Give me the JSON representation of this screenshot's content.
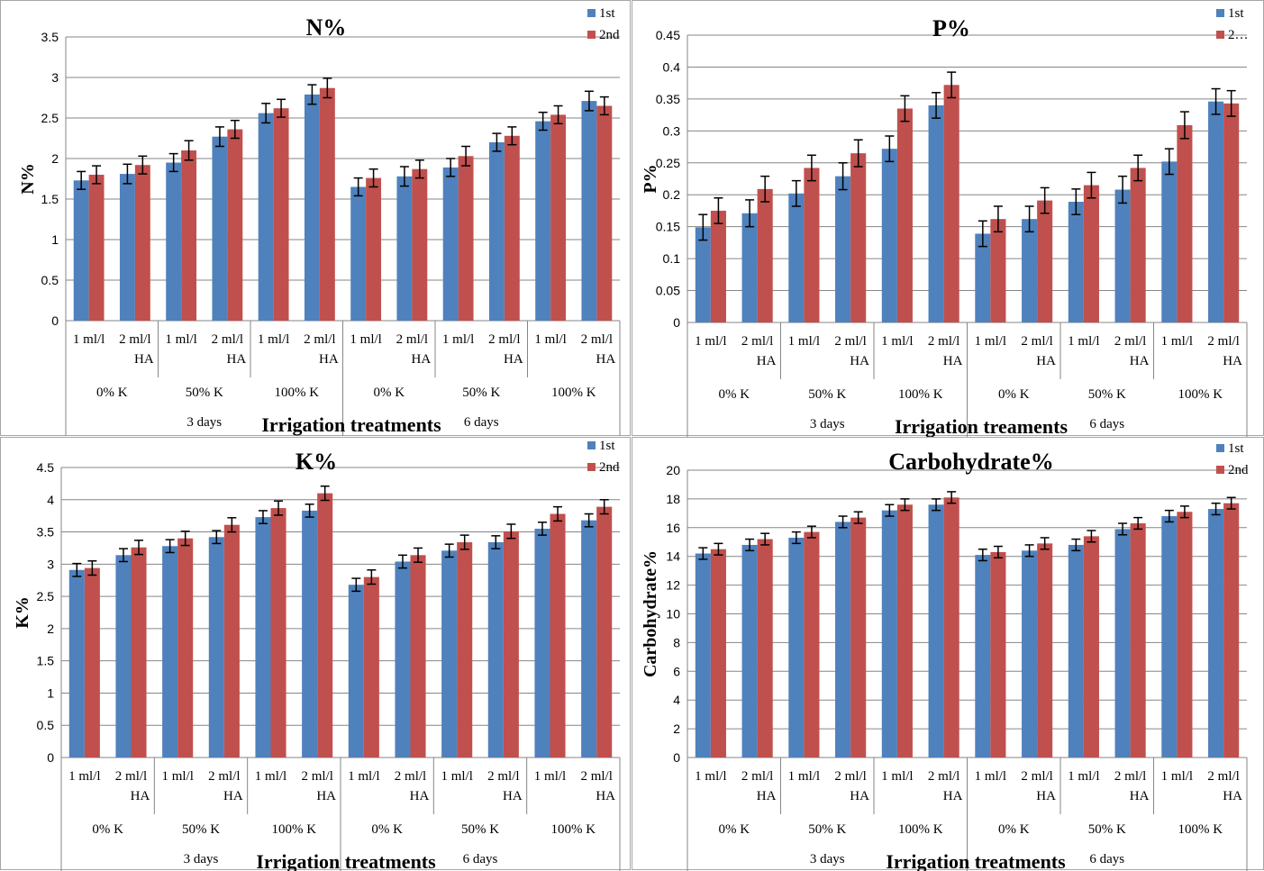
{
  "colors": {
    "series1": "#4f81bd",
    "series2": "#c0504d",
    "grid": "#868686",
    "axis": "#868686",
    "errorbar": "#000000"
  },
  "chart_data": [
    {
      "type": "bar",
      "title": "N%",
      "ylabel": "N%",
      "xlabel": "Irrigation treatments",
      "ylim": [
        0,
        3.5
      ],
      "yticks": [
        "0",
        "0.5",
        "1",
        "1.5",
        "2",
        "2.5",
        "3",
        "3.5"
      ],
      "legend_position": "top-right",
      "categories": [
        "1 ml/l",
        "2 ml/l HA",
        "1 ml/l",
        "2 ml/l HA",
        "1 ml/l",
        "2 ml/l HA",
        "1 ml/l",
        "2 ml/l HA",
        "1 ml/l",
        "2 ml/l HA",
        "1 ml/l",
        "2 ml/l HA"
      ],
      "groups_level2": [
        "0% K",
        "50% K",
        "100% K",
        "0% K",
        "50% K",
        "100% K"
      ],
      "groups_level3": [
        "3 days",
        "6 days"
      ],
      "series": [
        {
          "name": "1st",
          "values": [
            1.73,
            1.81,
            1.95,
            2.27,
            2.56,
            2.79,
            1.65,
            1.78,
            1.89,
            2.2,
            2.46,
            2.71
          ],
          "errors": [
            0.11,
            0.12,
            0.11,
            0.12,
            0.12,
            0.12,
            0.11,
            0.12,
            0.11,
            0.11,
            0.11,
            0.12
          ]
        },
        {
          "name": "2nd",
          "values": [
            1.8,
            1.92,
            2.1,
            2.36,
            2.62,
            2.87,
            1.76,
            1.87,
            2.03,
            2.28,
            2.54,
            2.65
          ],
          "errors": [
            0.11,
            0.11,
            0.12,
            0.11,
            0.11,
            0.12,
            0.11,
            0.11,
            0.12,
            0.11,
            0.11,
            0.11
          ]
        }
      ]
    },
    {
      "type": "bar",
      "title": "P%",
      "ylabel": "P%",
      "xlabel": "Irrigation treaments",
      "ylim": [
        0,
        0.45
      ],
      "yticks": [
        "0",
        "0.05",
        "0.1",
        "0.15",
        "0.2",
        "0.25",
        "0.3",
        "0.35",
        "0.4",
        "0.45"
      ],
      "legend_position": "top-right",
      "categories": [
        "1 ml/l",
        "2 ml/l HA",
        "1 ml/l",
        "2 ml/l HA",
        "1 ml/l",
        "2 ml/l HA",
        "1 ml/l",
        "2 ml/l HA",
        "1 ml/l",
        "2 ml/l HA",
        "1 ml/l",
        "2 ml/l HA"
      ],
      "groups_level2": [
        "0% K",
        "50% K",
        "100% K",
        "0% K",
        "50% K",
        "100% K"
      ],
      "groups_level3": [
        "3 days",
        "6 days"
      ],
      "series": [
        {
          "name": "1st",
          "values": [
            0.149,
            0.171,
            0.202,
            0.229,
            0.272,
            0.34,
            0.139,
            0.162,
            0.189,
            0.208,
            0.252,
            0.346
          ],
          "errors": [
            0.02,
            0.021,
            0.02,
            0.021,
            0.02,
            0.02,
            0.02,
            0.02,
            0.02,
            0.021,
            0.02,
            0.02
          ]
        },
        {
          "name": "2…",
          "values": [
            0.175,
            0.209,
            0.242,
            0.265,
            0.335,
            0.372,
            0.162,
            0.191,
            0.215,
            0.242,
            0.309,
            0.343
          ],
          "errors": [
            0.02,
            0.02,
            0.02,
            0.021,
            0.02,
            0.02,
            0.02,
            0.02,
            0.02,
            0.02,
            0.021,
            0.02
          ]
        }
      ]
    },
    {
      "type": "bar",
      "title": "K%",
      "ylabel": "K%",
      "xlabel": "Irrigation treatments",
      "ylim": [
        0,
        4.5
      ],
      "yticks": [
        "0",
        "0.5",
        "1",
        "1.5",
        "2",
        "2.5",
        "3",
        "3.5",
        "4",
        "4.5"
      ],
      "legend_position": "top-right",
      "categories": [
        "1 ml/l",
        "2 ml/l HA",
        "1 ml/l",
        "2 ml/l HA",
        "1 ml/l",
        "2 ml/l HA",
        "1 ml/l",
        "2 ml/l HA",
        "1 ml/l",
        "2 ml/l HA",
        "1 ml/l",
        "2 ml/l HA"
      ],
      "groups_level2": [
        "0% K",
        "50% K",
        "100% K",
        "0% K",
        "50% K",
        "100% K"
      ],
      "groups_level3": [
        "3 days",
        "6 days"
      ],
      "series": [
        {
          "name": "1st",
          "values": [
            2.91,
            3.14,
            3.28,
            3.42,
            3.73,
            3.83,
            2.68,
            3.04,
            3.21,
            3.34,
            3.55,
            3.68
          ],
          "errors": [
            0.1,
            0.1,
            0.1,
            0.1,
            0.1,
            0.1,
            0.1,
            0.1,
            0.1,
            0.1,
            0.1,
            0.1
          ]
        },
        {
          "name": "2nd",
          "values": [
            2.94,
            3.26,
            3.4,
            3.61,
            3.87,
            4.1,
            2.8,
            3.14,
            3.34,
            3.51,
            3.78,
            3.89
          ],
          "errors": [
            0.11,
            0.11,
            0.11,
            0.11,
            0.11,
            0.11,
            0.11,
            0.11,
            0.11,
            0.11,
            0.11,
            0.11
          ]
        }
      ]
    },
    {
      "type": "bar",
      "title": "Carbohydrate%",
      "ylabel": "Carbohydrate%",
      "xlabel": "Irrigation treatments",
      "ylim": [
        0,
        20
      ],
      "yticks": [
        "0",
        "2",
        "4",
        "6",
        "8",
        "10",
        "12",
        "14",
        "16",
        "18",
        "20"
      ],
      "legend_position": "top-right",
      "categories": [
        "1 ml/l",
        "2 ml/l HA",
        "1 ml/l",
        "2 ml/l HA",
        "1 ml/l",
        "2 ml/l HA",
        "1 ml/l",
        "2 ml/l HA",
        "1 ml/l",
        "2 ml/l HA",
        "1 ml/l",
        "2 ml/l HA"
      ],
      "groups_level2": [
        "0% K",
        "50% K",
        "100% K",
        "0% K",
        "50% K",
        "100% K"
      ],
      "groups_level3": [
        "3 days",
        "6 days"
      ],
      "series": [
        {
          "name": "1st",
          "values": [
            14.2,
            14.8,
            15.3,
            16.4,
            17.2,
            17.6,
            14.1,
            14.4,
            14.8,
            15.9,
            16.8,
            17.3
          ],
          "errors": [
            0.4,
            0.4,
            0.4,
            0.4,
            0.4,
            0.4,
            0.4,
            0.4,
            0.4,
            0.4,
            0.4,
            0.4
          ]
        },
        {
          "name": "2nd",
          "values": [
            14.5,
            15.2,
            15.7,
            16.7,
            17.6,
            18.1,
            14.3,
            14.9,
            15.4,
            16.3,
            17.1,
            17.7
          ],
          "errors": [
            0.4,
            0.4,
            0.4,
            0.4,
            0.4,
            0.4,
            0.4,
            0.4,
            0.4,
            0.4,
            0.4,
            0.4
          ]
        }
      ]
    }
  ]
}
